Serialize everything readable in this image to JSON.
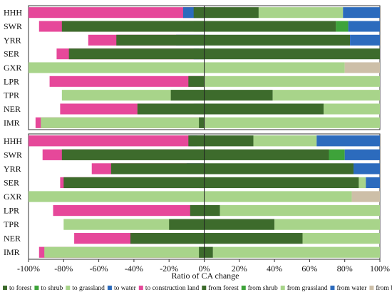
{
  "chart_data": {
    "type": "bar",
    "orientation": "horizontal",
    "stacked": "diverging",
    "xlabel": "Ratio of CA change",
    "xlim": [
      -100,
      100
    ],
    "xticks": [
      "-100%",
      "-80%",
      "-60%",
      "-40%",
      "-20%",
      "0%",
      "20%",
      "40%",
      "60%",
      "80%",
      "100%"
    ],
    "tick_values": [
      -100,
      -80,
      -60,
      -40,
      -20,
      0,
      20,
      40,
      60,
      80,
      100
    ],
    "categories": [
      "HHH",
      "SWR",
      "YRR",
      "SER",
      "GXR",
      "LPR",
      "TPR",
      "NER",
      "IMR"
    ],
    "legend": [
      {
        "key": "to_forest",
        "label": "to forest",
        "color": "#3d6b2c"
      },
      {
        "key": "to_shrub",
        "label": "to shrub",
        "color": "#3ea33a"
      },
      {
        "key": "to_grassland",
        "label": "to grassland",
        "color": "#a8d48a"
      },
      {
        "key": "to_water",
        "label": "to water",
        "color": "#2c6bbd"
      },
      {
        "key": "to_construction",
        "label": "to construction land",
        "color": "#e6489a"
      },
      {
        "key": "from_forest",
        "label": "from forest",
        "color": "#3d6b2c"
      },
      {
        "key": "from_shrub",
        "label": "from shrub",
        "color": "#3ea33a"
      },
      {
        "key": "from_grassland",
        "label": "from grassland",
        "color": "#a8d48a"
      },
      {
        "key": "from_water",
        "label": "from water",
        "color": "#2c6bbd"
      },
      {
        "key": "from_barren",
        "label": "from barren",
        "color": "#cdbfa8"
      }
    ],
    "panels": [
      {
        "negative": {
          "to_construction": [
            -100,
            -94,
            -66,
            -84,
            0,
            -88,
            0,
            -82,
            -96
          ],
          "to_water": [
            -12,
            0,
            -16,
            -6,
            0,
            0,
            0,
            -6,
            0
          ],
          "to_grassland": [
            -5,
            -13,
            0,
            -3,
            -100,
            0,
            -81,
            -38,
            -93
          ],
          "to_shrub": [
            0,
            -6,
            0,
            0,
            0,
            0,
            0,
            0,
            0
          ],
          "to_forest": [
            -6,
            -81,
            -50,
            -77,
            0,
            -9,
            -19,
            -38,
            -3
          ]
        },
        "positive": {
          "from_forest": [
            31,
            75,
            83,
            100,
            0,
            0,
            39,
            68,
            0
          ],
          "from_grassland": [
            48,
            0,
            0,
            0,
            80,
            100,
            61,
            32,
            100
          ],
          "from_shrub": [
            0,
            7,
            0,
            0,
            0,
            0,
            0,
            0,
            0
          ],
          "from_water": [
            21,
            18,
            17,
            0,
            0,
            0,
            0,
            0,
            0
          ],
          "from_barren": [
            0,
            0,
            0,
            0,
            20,
            0,
            0,
            0,
            0
          ]
        }
      },
      {
        "negative": {
          "to_construction": [
            -100,
            -92,
            -64,
            -82,
            0,
            -86,
            0,
            -74,
            -94
          ],
          "to_water": [
            -8,
            0,
            -10,
            0,
            0,
            0,
            0,
            -5,
            0
          ],
          "to_grassland": [
            -4,
            -11,
            0,
            -3,
            -100,
            0,
            -80,
            -28,
            -91
          ],
          "to_shrub": [
            0,
            0,
            0,
            0,
            0,
            0,
            0,
            0,
            0
          ],
          "to_forest": [
            -9,
            -81,
            -53,
            -80,
            0,
            -8,
            -20,
            -42,
            -3
          ]
        },
        "positive": {
          "from_forest": [
            28,
            71,
            85,
            88,
            0,
            9,
            40,
            56,
            5
          ],
          "from_grassland": [
            36,
            0,
            0,
            4,
            84,
            91,
            60,
            44,
            95
          ],
          "from_shrub": [
            0,
            9,
            0,
            0,
            0,
            0,
            0,
            0,
            0
          ],
          "from_water": [
            36,
            20,
            15,
            8,
            0,
            0,
            0,
            0,
            0
          ],
          "from_barren": [
            0,
            0,
            0,
            0,
            16,
            0,
            0,
            0,
            0
          ]
        }
      }
    ]
  }
}
